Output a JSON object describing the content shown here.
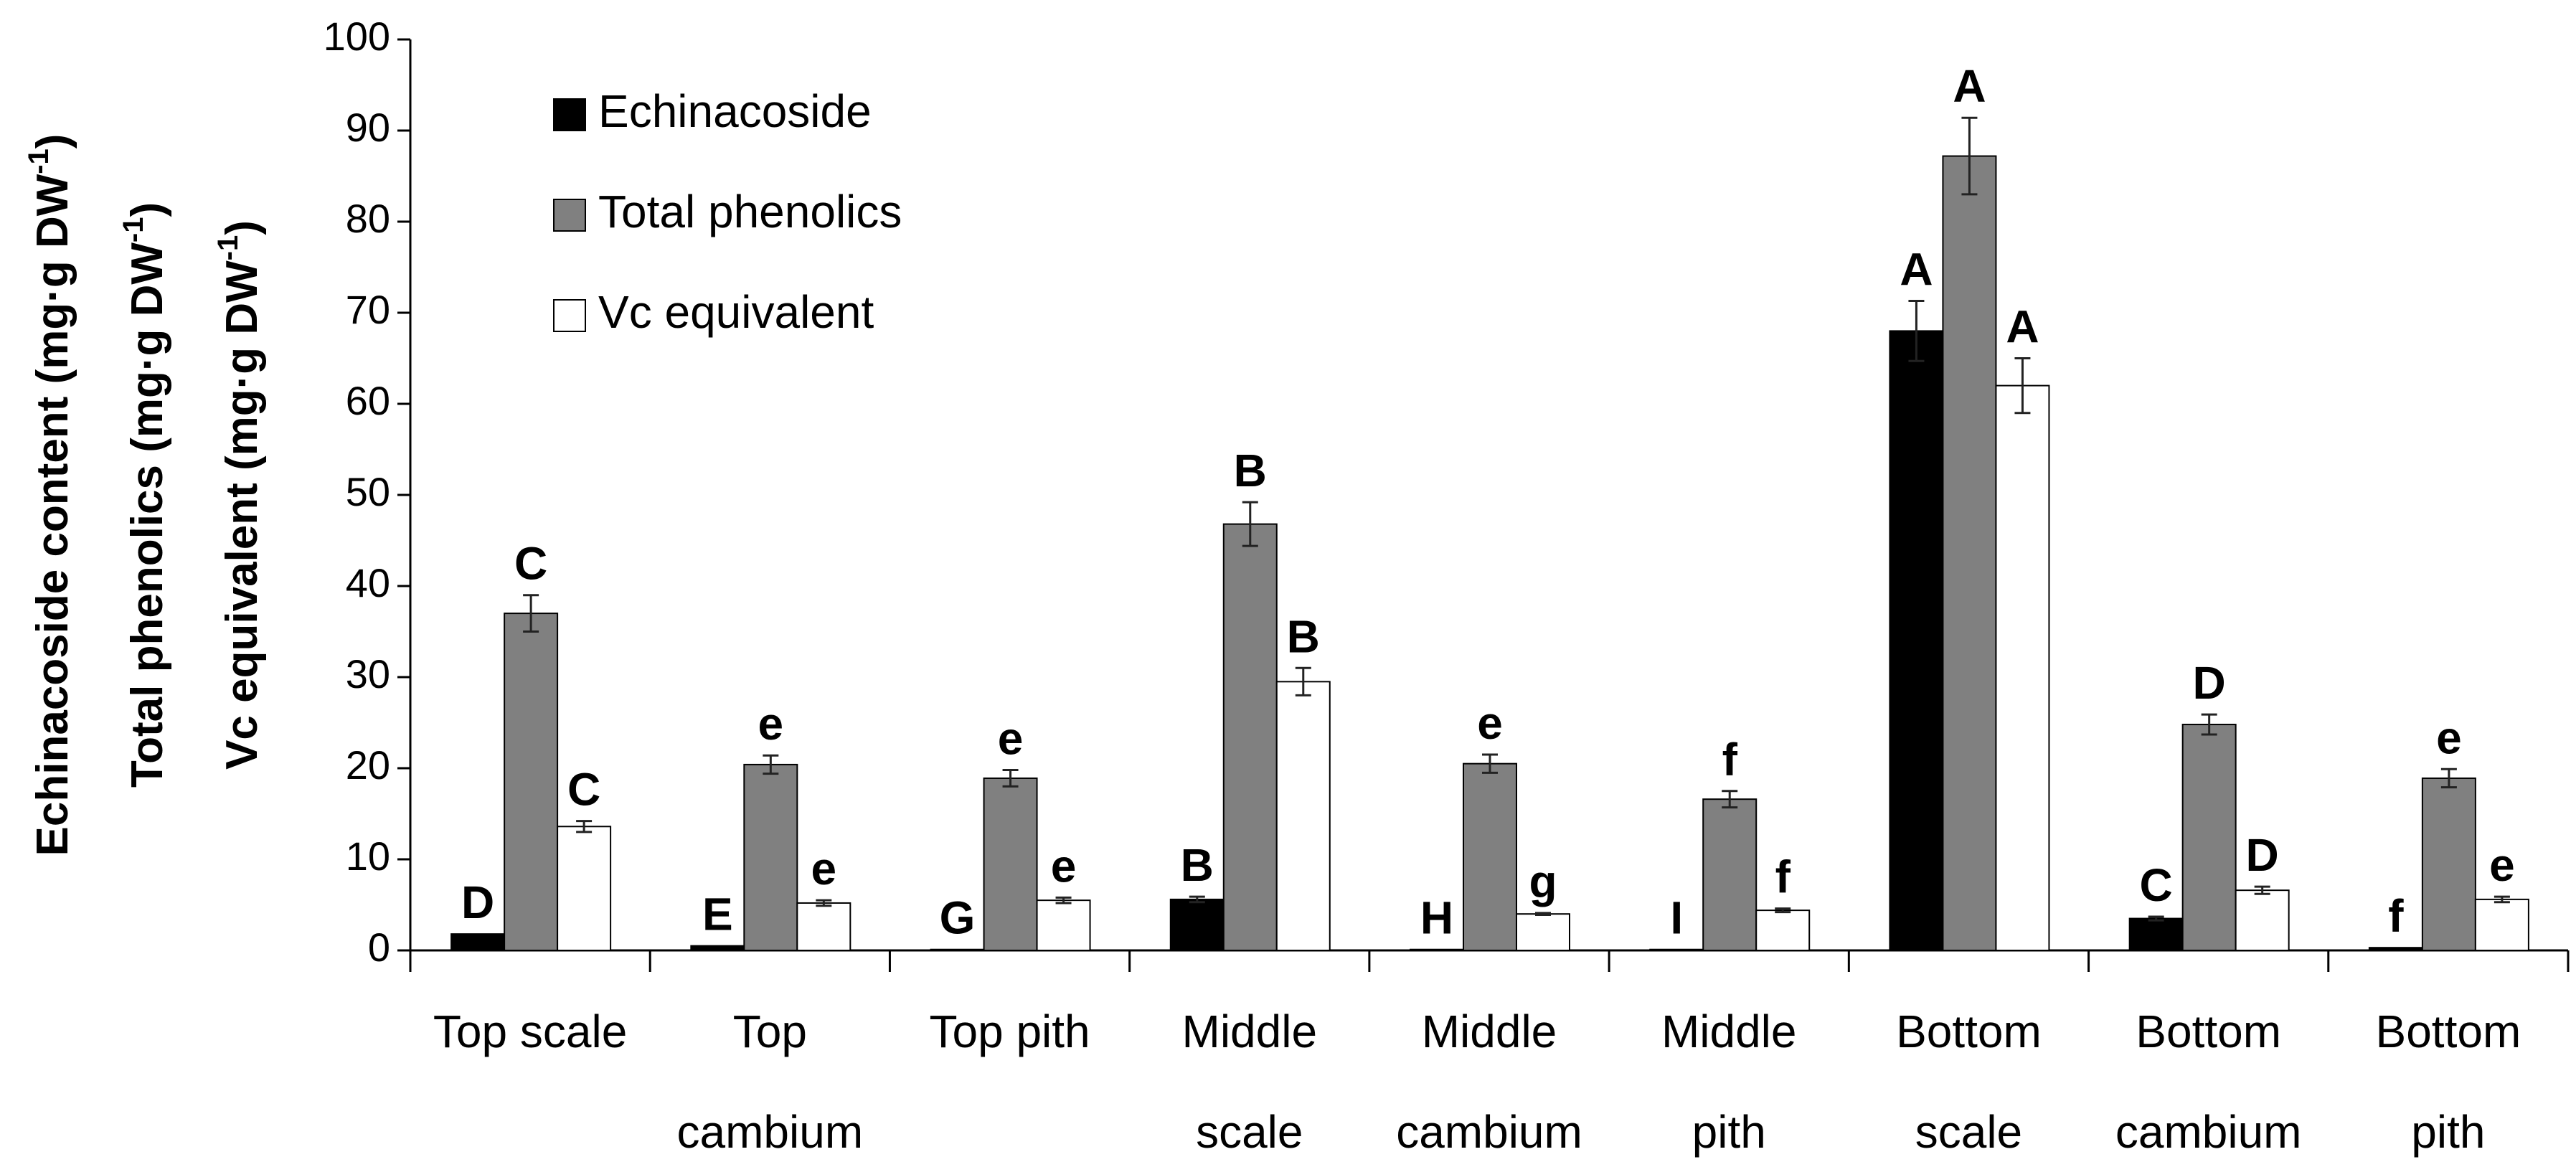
{
  "colors": {
    "echinacoside": "#000000",
    "total_phenolics": "#808080",
    "vc_equivalent": "#ffffff",
    "bar_stroke": "#000000"
  },
  "chart_data": {
    "type": "bar",
    "categories": [
      [
        "Top scale"
      ],
      [
        "Top",
        "cambium"
      ],
      [
        "Top pith"
      ],
      [
        "Middle",
        "scale"
      ],
      [
        "Middle",
        "cambium"
      ],
      [
        "Middle",
        "pith"
      ],
      [
        "Bottom",
        "scale"
      ],
      [
        "Bottom",
        "cambium"
      ],
      [
        "Bottom",
        "pith"
      ]
    ],
    "series": [
      {
        "name": "Echinacoside",
        "color_key": "echinacoside",
        "values": [
          1.8,
          0.5,
          0.1,
          5.6,
          0.1,
          0.1,
          68.0,
          3.5,
          0.3
        ],
        "errors": [
          0,
          0,
          0,
          0.3,
          0,
          0,
          3.3,
          0.2,
          0
        ],
        "labels": [
          "D",
          "E",
          "G",
          "B",
          "H",
          "I",
          "A",
          "C",
          "f"
        ]
      },
      {
        "name": "Total phenolics",
        "color_key": "total_phenolics",
        "values": [
          37.0,
          20.4,
          18.9,
          46.8,
          20.5,
          16.6,
          87.2,
          24.8,
          18.9
        ],
        "errors": [
          2.0,
          1.0,
          0.9,
          2.4,
          1.0,
          0.9,
          4.2,
          1.1,
          1.0
        ],
        "labels": [
          "C",
          "e",
          "e",
          "B",
          "e",
          "f",
          "A",
          "D",
          "e"
        ]
      },
      {
        "name": "Vc equivalent",
        "color_key": "vc_equivalent",
        "values": [
          13.6,
          5.2,
          5.5,
          29.5,
          4.0,
          4.4,
          62.0,
          6.6,
          5.6
        ],
        "errors": [
          0.6,
          0.3,
          0.3,
          1.5,
          0.1,
          0.2,
          3.0,
          0.4,
          0.3
        ],
        "labels": [
          "C",
          "e",
          "e",
          "B",
          "g",
          "f",
          "A",
          "D",
          "e"
        ]
      }
    ],
    "ylim": [
      0,
      100
    ],
    "yticks": [
      0,
      10,
      20,
      30,
      40,
      50,
      60,
      70,
      80,
      90,
      100
    ],
    "ylabels": [
      {
        "text": "Echinacoside content (mg·g DW",
        "sup": "-1",
        "close": ")"
      },
      {
        "text": "Total phenolics (mg·g DW",
        "sup": "-1",
        "close": ")"
      },
      {
        "text": "Vc equivalent (mg·g DW",
        "sup": "-1",
        "close": ")"
      }
    ],
    "legend_position": "top-left",
    "grid": false
  }
}
